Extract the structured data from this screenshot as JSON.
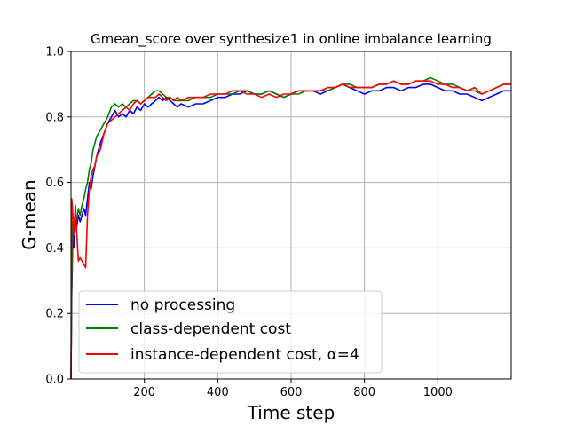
{
  "chart_data": {
    "type": "line",
    "title": "Gmean_score over synthesize1 in online imbalance learning",
    "xlabel": "Time step",
    "ylabel": "G-mean",
    "xlim": [
      0,
      1200
    ],
    "ylim": [
      0.0,
      1.0
    ],
    "xticks": [
      200,
      400,
      600,
      800,
      1000
    ],
    "xtick_labels": [
      "200",
      "400",
      "600",
      "800",
      "1000"
    ],
    "yticks": [
      0.0,
      0.2,
      0.4,
      0.6,
      0.8,
      1.0
    ],
    "ytick_labels": [
      "0.0",
      "0.2",
      "0.4",
      "0.6",
      "0.8",
      "1.0"
    ],
    "grid": true,
    "legend_position": "lower-left",
    "series": [
      {
        "name": "no processing",
        "color": "#0000ff",
        "x": [
          0,
          2,
          5,
          8,
          12,
          15,
          20,
          25,
          30,
          35,
          40,
          45,
          50,
          55,
          60,
          65,
          70,
          80,
          90,
          100,
          110,
          120,
          130,
          140,
          150,
          160,
          170,
          180,
          190,
          200,
          210,
          220,
          230,
          240,
          250,
          260,
          270,
          280,
          290,
          300,
          320,
          340,
          360,
          380,
          400,
          420,
          440,
          460,
          480,
          500,
          520,
          540,
          560,
          580,
          600,
          620,
          640,
          660,
          680,
          700,
          720,
          740,
          760,
          780,
          800,
          820,
          840,
          860,
          880,
          900,
          920,
          940,
          960,
          980,
          1000,
          1020,
          1040,
          1060,
          1080,
          1100,
          1120,
          1140,
          1160,
          1180,
          1200
        ],
        "y": [
          0.0,
          0.25,
          0.45,
          0.4,
          0.48,
          0.46,
          0.5,
          0.48,
          0.5,
          0.52,
          0.5,
          0.55,
          0.6,
          0.58,
          0.62,
          0.65,
          0.68,
          0.72,
          0.75,
          0.78,
          0.8,
          0.82,
          0.8,
          0.81,
          0.8,
          0.82,
          0.81,
          0.83,
          0.82,
          0.84,
          0.83,
          0.84,
          0.85,
          0.86,
          0.85,
          0.86,
          0.85,
          0.84,
          0.83,
          0.84,
          0.83,
          0.84,
          0.84,
          0.85,
          0.86,
          0.86,
          0.87,
          0.87,
          0.88,
          0.87,
          0.87,
          0.88,
          0.87,
          0.86,
          0.87,
          0.88,
          0.88,
          0.88,
          0.87,
          0.88,
          0.89,
          0.9,
          0.89,
          0.88,
          0.87,
          0.88,
          0.88,
          0.89,
          0.89,
          0.88,
          0.89,
          0.89,
          0.9,
          0.9,
          0.89,
          0.88,
          0.88,
          0.87,
          0.87,
          0.86,
          0.85,
          0.86,
          0.87,
          0.88,
          0.88
        ]
      },
      {
        "name": "class-dependent cost",
        "color": "#008000",
        "x": [
          0,
          2,
          5,
          8,
          12,
          15,
          20,
          25,
          30,
          35,
          40,
          45,
          50,
          55,
          60,
          65,
          70,
          80,
          90,
          100,
          110,
          120,
          130,
          140,
          150,
          160,
          170,
          180,
          190,
          200,
          210,
          220,
          230,
          240,
          250,
          260,
          270,
          280,
          290,
          300,
          320,
          340,
          360,
          380,
          400,
          420,
          440,
          460,
          480,
          500,
          520,
          540,
          560,
          580,
          600,
          620,
          640,
          660,
          680,
          700,
          720,
          740,
          760,
          780,
          800,
          820,
          840,
          860,
          880,
          900,
          920,
          940,
          960,
          980,
          1000,
          1020,
          1040,
          1060,
          1080,
          1100,
          1120,
          1140,
          1160,
          1180,
          1200
        ],
        "y": [
          0.0,
          0.3,
          0.48,
          0.45,
          0.5,
          0.48,
          0.52,
          0.5,
          0.53,
          0.55,
          0.58,
          0.6,
          0.64,
          0.66,
          0.7,
          0.72,
          0.74,
          0.76,
          0.78,
          0.8,
          0.83,
          0.84,
          0.83,
          0.84,
          0.83,
          0.84,
          0.85,
          0.85,
          0.84,
          0.85,
          0.86,
          0.87,
          0.88,
          0.88,
          0.87,
          0.86,
          0.86,
          0.85,
          0.85,
          0.85,
          0.85,
          0.86,
          0.86,
          0.86,
          0.87,
          0.87,
          0.87,
          0.88,
          0.88,
          0.87,
          0.87,
          0.88,
          0.87,
          0.86,
          0.87,
          0.87,
          0.88,
          0.88,
          0.88,
          0.88,
          0.89,
          0.9,
          0.9,
          0.89,
          0.89,
          0.89,
          0.9,
          0.9,
          0.91,
          0.9,
          0.9,
          0.91,
          0.91,
          0.92,
          0.91,
          0.9,
          0.9,
          0.89,
          0.88,
          0.88,
          0.87,
          0.88,
          0.89,
          0.9,
          0.9
        ]
      },
      {
        "name": "instance-dependent cost, α=4",
        "color": "#ff0000",
        "x": [
          0,
          2,
          5,
          8,
          12,
          15,
          20,
          25,
          30,
          35,
          40,
          45,
          50,
          55,
          60,
          65,
          70,
          80,
          90,
          100,
          110,
          120,
          130,
          140,
          150,
          160,
          170,
          180,
          190,
          200,
          210,
          220,
          230,
          240,
          250,
          260,
          270,
          280,
          290,
          300,
          320,
          340,
          360,
          380,
          400,
          420,
          440,
          460,
          480,
          500,
          520,
          540,
          560,
          580,
          600,
          620,
          640,
          660,
          680,
          700,
          720,
          740,
          760,
          780,
          800,
          820,
          840,
          860,
          880,
          900,
          920,
          940,
          960,
          980,
          1000,
          1020,
          1040,
          1060,
          1080,
          1100,
          1120,
          1140,
          1160,
          1180,
          1200
        ],
        "y": [
          0.0,
          0.55,
          0.5,
          0.45,
          0.53,
          0.46,
          0.36,
          0.37,
          0.36,
          0.35,
          0.34,
          0.5,
          0.58,
          0.62,
          0.64,
          0.65,
          0.68,
          0.7,
          0.75,
          0.78,
          0.79,
          0.8,
          0.81,
          0.82,
          0.83,
          0.82,
          0.84,
          0.85,
          0.84,
          0.85,
          0.86,
          0.86,
          0.86,
          0.87,
          0.86,
          0.85,
          0.86,
          0.85,
          0.86,
          0.85,
          0.86,
          0.86,
          0.86,
          0.87,
          0.87,
          0.87,
          0.88,
          0.88,
          0.87,
          0.87,
          0.86,
          0.87,
          0.86,
          0.87,
          0.87,
          0.88,
          0.88,
          0.88,
          0.88,
          0.89,
          0.89,
          0.9,
          0.89,
          0.89,
          0.89,
          0.89,
          0.9,
          0.9,
          0.91,
          0.9,
          0.9,
          0.91,
          0.91,
          0.91,
          0.9,
          0.9,
          0.89,
          0.89,
          0.88,
          0.89,
          0.87,
          0.88,
          0.89,
          0.9,
          0.9
        ]
      }
    ]
  }
}
